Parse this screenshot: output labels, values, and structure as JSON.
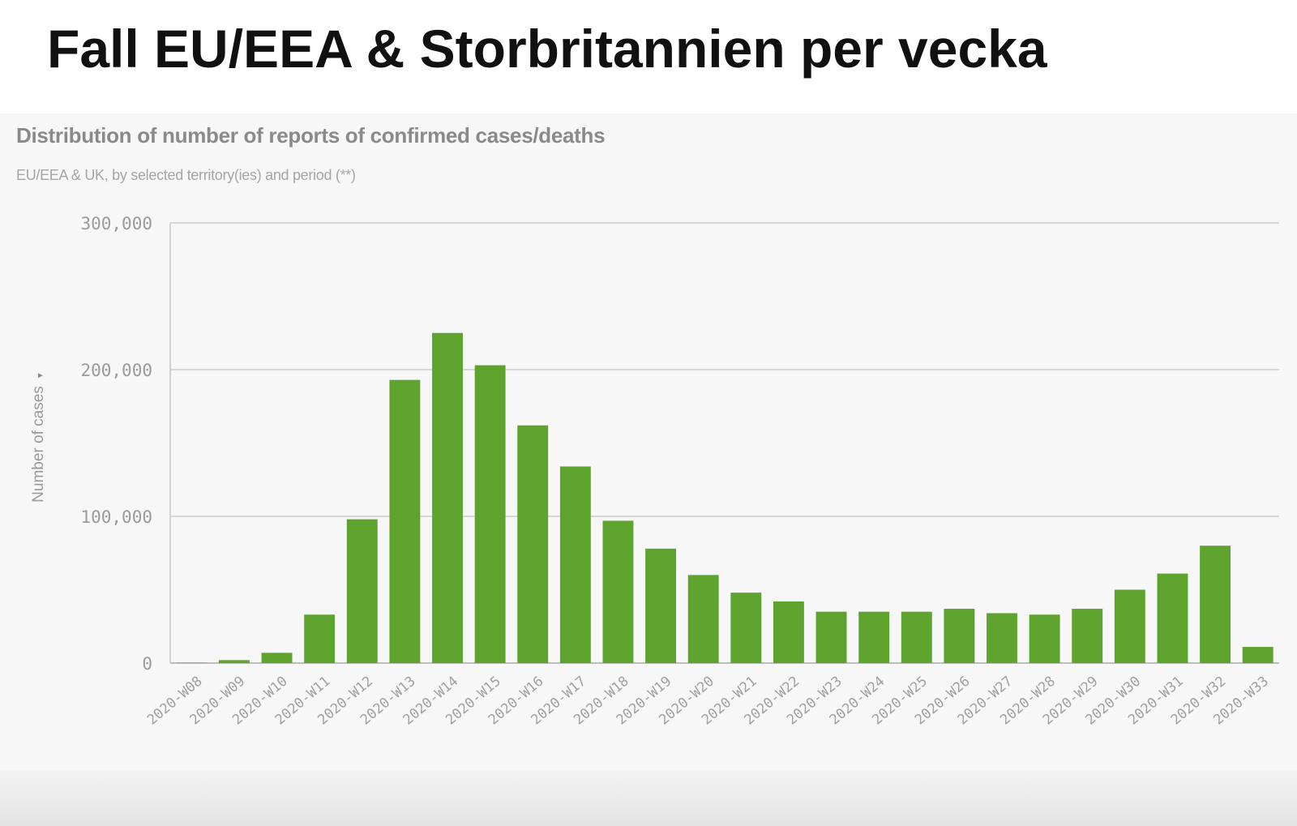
{
  "slide": {
    "title": "Fall EU/EEA & Storbritannien per vecka"
  },
  "chart_data": {
    "type": "bar",
    "title": "Distribution of number of reports of confirmed cases/deaths",
    "subtitle": "EU/EEA & UK, by selected territory(ies) and period (**)",
    "ylabel": "Number of cases",
    "ylabel_control": "▾",
    "xlabel": "",
    "ylim": [
      0,
      300000
    ],
    "yticks": [
      0,
      100000,
      200000,
      300000
    ],
    "ytick_labels": [
      "0",
      "100,000",
      "200,000",
      "300,000"
    ],
    "grid": "horizontal",
    "categories": [
      "2020-W08",
      "2020-W09",
      "2020-W10",
      "2020-W11",
      "2020-W12",
      "2020-W13",
      "2020-W14",
      "2020-W15",
      "2020-W16",
      "2020-W17",
      "2020-W18",
      "2020-W19",
      "2020-W20",
      "2020-W21",
      "2020-W22",
      "2020-W23",
      "2020-W24",
      "2020-W25",
      "2020-W26",
      "2020-W27",
      "2020-W28",
      "2020-W29",
      "2020-W30",
      "2020-W31",
      "2020-W32",
      "2020-W33"
    ],
    "values": [
      200,
      2000,
      7000,
      33000,
      98000,
      193000,
      225000,
      203000,
      162000,
      134000,
      97000,
      78000,
      60000,
      48000,
      42000,
      35000,
      35000,
      35000,
      37000,
      34000,
      33000,
      37000,
      50000,
      61000,
      80000,
      11000
    ],
    "bar_color": "#5ea32e"
  }
}
